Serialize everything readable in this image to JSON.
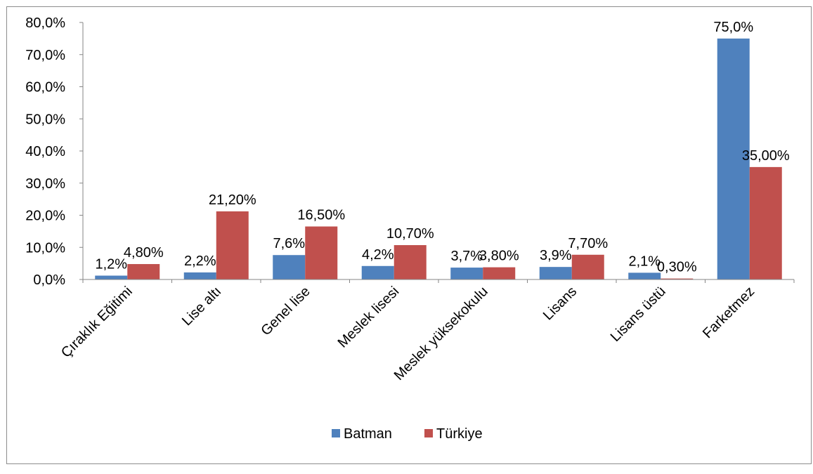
{
  "chart_data": {
    "type": "bar",
    "title": "",
    "xlabel": "",
    "ylabel": "",
    "ylim": [
      0,
      80
    ],
    "yticks": [
      "0,0%",
      "10,0%",
      "20,0%",
      "30,0%",
      "40,0%",
      "50,0%",
      "60,0%",
      "70,0%",
      "80,0%"
    ],
    "grid": false,
    "legend_position": "bottom",
    "categories": [
      "Çıraklık Eğitimi",
      "Lise altı",
      "Genel lise",
      "Meslek lisesi",
      "Meslek yüksekokulu",
      "Lisans",
      "Lisans üstü",
      "Farketmez"
    ],
    "series": [
      {
        "name": "Batman",
        "color": "#4f81bd",
        "values": [
          1.2,
          2.2,
          7.6,
          4.2,
          3.7,
          3.9,
          2.1,
          75.0
        ],
        "labels": [
          "1,2%",
          "2,2%",
          "7,6%",
          "4,2%",
          "3,7%",
          "3,9%",
          "2,1%",
          "75,0%"
        ]
      },
      {
        "name": "Türkiye",
        "color": "#c0504d",
        "values": [
          4.8,
          21.2,
          16.5,
          10.7,
          3.8,
          7.7,
          0.3,
          35.0
        ],
        "labels": [
          "4,80%",
          "21,20%",
          "16,50%",
          "10,70%",
          "3,80%",
          "7,70%",
          "0,30%",
          "35,00%"
        ]
      }
    ]
  }
}
